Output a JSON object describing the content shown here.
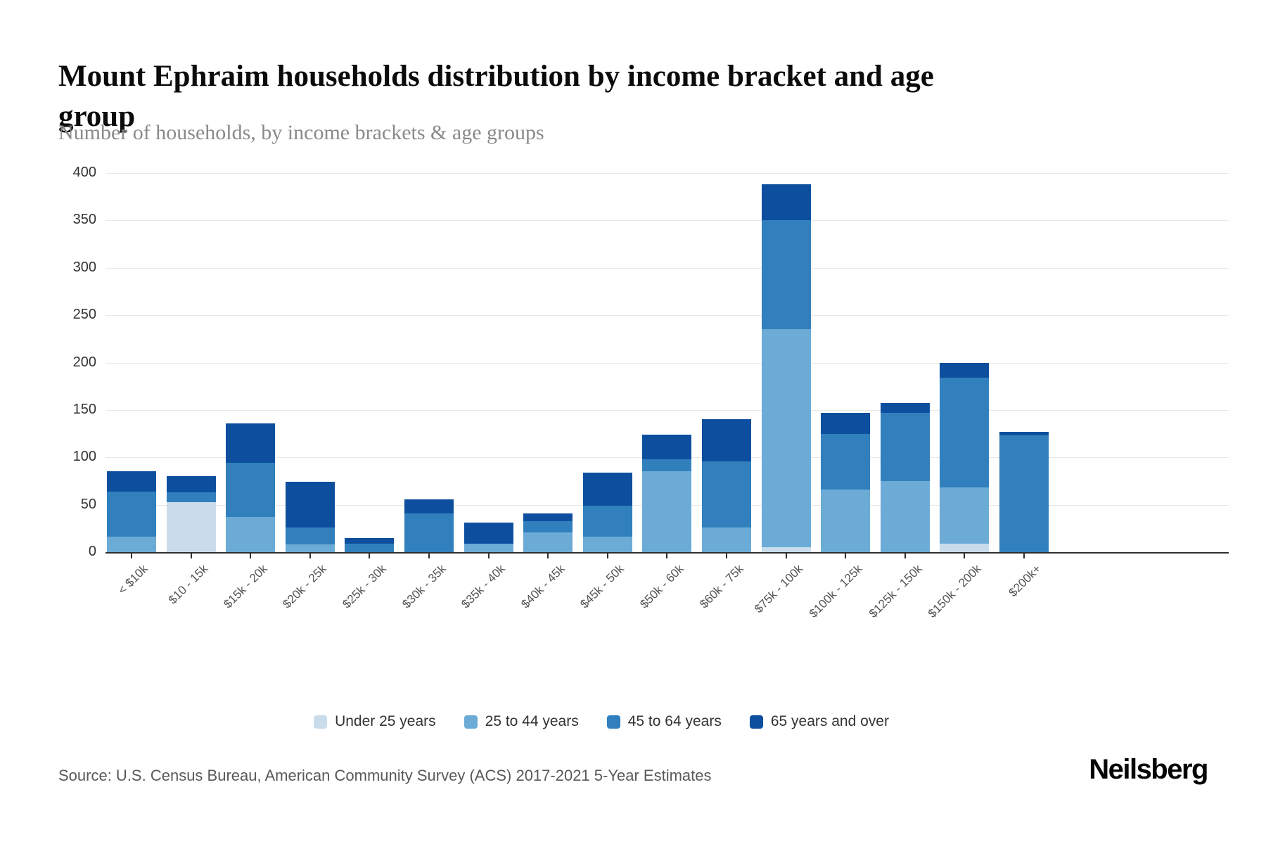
{
  "header": {
    "title": "Mount Ephraim households distribution by income bracket and age group",
    "subtitle": "Number of households, by income brackets & age groups"
  },
  "y_axis": {
    "tick_labels": [
      "0",
      "50",
      "100",
      "150",
      "200",
      "250",
      "300",
      "350",
      "400"
    ]
  },
  "legend": {
    "items": [
      {
        "label": "Under 25 years",
        "color": "#c9dcec"
      },
      {
        "label": "25 to 44 years",
        "color": "#6cabd6"
      },
      {
        "label": "45 to 64 years",
        "color": "#3180bd"
      },
      {
        "label": "65 years and over",
        "color": "#0d4f9e"
      }
    ]
  },
  "colors": {
    "under_25": "#c9dcec",
    "age_25_44": "#6cabd6",
    "age_45_64": "#3180bd",
    "age_65_over": "#0d4f9e",
    "gridline": "#e8e8e8",
    "axis": "#2f2f2f"
  },
  "chart_data": {
    "type": "bar",
    "stacked": true,
    "title": "Mount Ephraim households distribution by income bracket and age group",
    "subtitle": "Number of households, by income brackets & age groups",
    "xlabel": "",
    "ylabel": "Number of households",
    "ylim": [
      0,
      400
    ],
    "ytick_step": 50,
    "grid": true,
    "legend_position": "bottom",
    "categories": [
      "< $10k",
      "$10 - 15k",
      "$15k - 20k",
      "$20k - 25k",
      "$25k - 30k",
      "$30k - 35k",
      "$35k - 40k",
      "$40k - 45k",
      "$45k - 50k",
      "$50k - 60k",
      "$60k - 75k",
      "$75k - 100k",
      "$100k - 125k",
      "$125k - 150k",
      "$150k - 200k",
      "$200k+"
    ],
    "series": [
      {
        "name": "Under 25 years",
        "color": "#c9dcec",
        "values": [
          0,
          53,
          0,
          0,
          0,
          0,
          0,
          0,
          0,
          0,
          0,
          5,
          0,
          0,
          9,
          0
        ]
      },
      {
        "name": "25 to 44 years",
        "color": "#6cabd6",
        "values": [
          16,
          0,
          37,
          8,
          0,
          0,
          9,
          21,
          16,
          85,
          26,
          230,
          66,
          75,
          59,
          0
        ]
      },
      {
        "name": "45 to 64 years",
        "color": "#3180bd",
        "values": [
          48,
          10,
          57,
          18,
          9,
          41,
          0,
          12,
          33,
          13,
          70,
          115,
          59,
          72,
          116,
          123
        ]
      },
      {
        "name": "65 years and over",
        "color": "#0d4f9e",
        "values": [
          21,
          17,
          42,
          48,
          6,
          15,
          22,
          8,
          35,
          26,
          44,
          38,
          22,
          10,
          16,
          4
        ]
      }
    ],
    "totals": [
      85,
      80,
      136,
      74,
      15,
      56,
      31,
      41,
      84,
      124,
      140,
      388,
      147,
      157,
      200,
      127
    ]
  },
  "footer": {
    "source": "Source: U.S. Census Bureau, American Community Survey (ACS) 2017-2021 5-Year Estimates",
    "brand": "Neilsberg"
  }
}
